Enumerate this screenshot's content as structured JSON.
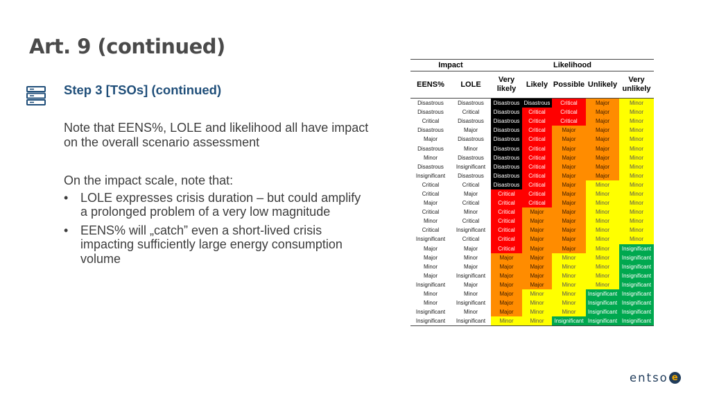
{
  "title": "Art. 9 (continued)",
  "step": {
    "icon": "server-stack-icon",
    "title": "Step 3 [TSOs] (continued)"
  },
  "body": {
    "para1": "Note that EENS%, LOLE and likelihood all have impact on the overall scenario assessment",
    "para2": "On the impact scale, note that:",
    "bullets": [
      {
        "marker": "•",
        "text": "LOLE expresses crisis duration – but could amplify a prolonged problem of a very low magnitude"
      },
      {
        "marker": "•",
        "text": "EENS% will „catch” even a short-lived crisis impacting sufficiently large energy consumption volume"
      }
    ]
  },
  "table": {
    "group_headers": {
      "impact": "Impact",
      "likelihood": "Likelihood"
    },
    "columns": [
      "EENS%",
      "LOLE",
      "Very likely",
      "Likely",
      "Possible",
      "Unlikely",
      "Very unlikely"
    ],
    "colors": {
      "Disastrous": "#000000",
      "Critical": "#ff0000",
      "Major": "#ff8c00",
      "Minor": "#ffff00",
      "Insignificant": "#00a84f"
    },
    "rows": [
      [
        "Disastrous",
        "Disastrous",
        "Disastrous",
        "Disastrous",
        "Critical",
        "Major",
        "Minor"
      ],
      [
        "Disastrous",
        "Critical",
        "Disastrous",
        "Critical",
        "Critical",
        "Major",
        "Minor"
      ],
      [
        "Critical",
        "Disastrous",
        "Disastrous",
        "Critical",
        "Critical",
        "Major",
        "Minor"
      ],
      [
        "Disastrous",
        "Major",
        "Disastrous",
        "Critical",
        "Major",
        "Major",
        "Minor"
      ],
      [
        "Major",
        "Disastrous",
        "Disastrous",
        "Critical",
        "Major",
        "Major",
        "Minor"
      ],
      [
        "Disastrous",
        "Minor",
        "Disastrous",
        "Critical",
        "Major",
        "Major",
        "Minor"
      ],
      [
        "Minor",
        "Disastrous",
        "Disastrous",
        "Critical",
        "Major",
        "Major",
        "Minor"
      ],
      [
        "Disastrous",
        "Insignificant",
        "Disastrous",
        "Critical",
        "Major",
        "Major",
        "Minor"
      ],
      [
        "Insignificant",
        "Disastrous",
        "Disastrous",
        "Critical",
        "Major",
        "Major",
        "Minor"
      ],
      [
        "Critical",
        "Critical",
        "Disastrous",
        "Critical",
        "Major",
        "Minor",
        "Minor"
      ],
      [
        "Critical",
        "Major",
        "Critical",
        "Critical",
        "Major",
        "Minor",
        "Minor"
      ],
      [
        "Major",
        "Critical",
        "Critical",
        "Critical",
        "Major",
        "Minor",
        "Minor"
      ],
      [
        "Critical",
        "Minor",
        "Critical",
        "Major",
        "Major",
        "Minor",
        "Minor"
      ],
      [
        "Minor",
        "Critical",
        "Critical",
        "Major",
        "Major",
        "Minor",
        "Minor"
      ],
      [
        "Critical",
        "Insignificant",
        "Critical",
        "Major",
        "Major",
        "Minor",
        "Minor"
      ],
      [
        "Insignificant",
        "Critical",
        "Critical",
        "Major",
        "Major",
        "Minor",
        "Minor"
      ],
      [
        "Major",
        "Major",
        "Critical",
        "Major",
        "Major",
        "Minor",
        "Insignificant"
      ],
      [
        "Major",
        "Minor",
        "Major",
        "Major",
        "Minor",
        "Minor",
        "Insignificant"
      ],
      [
        "Minor",
        "Major",
        "Major",
        "Major",
        "Minor",
        "Minor",
        "Insignificant"
      ],
      [
        "Major",
        "Insignificant",
        "Major",
        "Major",
        "Minor",
        "Minor",
        "Insignificant"
      ],
      [
        "Insignificant",
        "Major",
        "Major",
        "Major",
        "Minor",
        "Minor",
        "Insignificant"
      ],
      [
        "Minor",
        "Minor",
        "Major",
        "Minor",
        "Minor",
        "Insignificant",
        "Insignificant"
      ],
      [
        "Minor",
        "Insignificant",
        "Major",
        "Minor",
        "Minor",
        "Insignificant",
        "Insignificant"
      ],
      [
        "Insignificant",
        "Minor",
        "Major",
        "Minor",
        "Minor",
        "Insignificant",
        "Insignificant"
      ],
      [
        "Insignificant",
        "Insignificant",
        "Minor",
        "Minor",
        "Insignificant",
        "Insignificant",
        "Insignificant"
      ]
    ]
  },
  "logo": {
    "text": "entso",
    "mark": "e"
  }
}
